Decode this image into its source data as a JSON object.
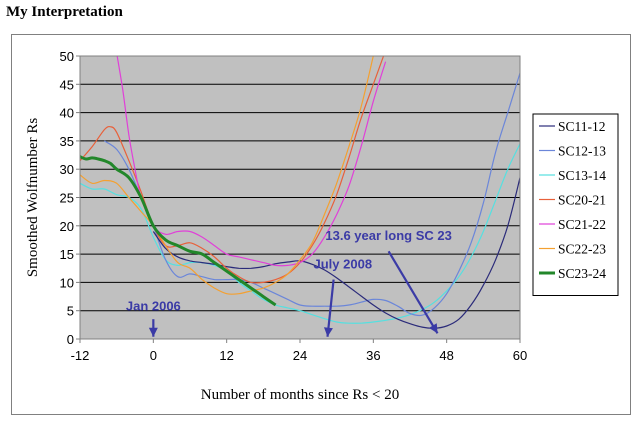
{
  "page": {
    "heading": "My Interpretation"
  },
  "chart_data": {
    "type": "line",
    "title": "",
    "xlabel": "Number of months since Rs < 20",
    "ylabel": "Smoothed Wolfnumber Rs",
    "xlim": [
      -12,
      60
    ],
    "ylim": [
      0,
      50
    ],
    "xticks": [
      "-12",
      "0",
      "12",
      "24",
      "36",
      "48",
      "60"
    ],
    "yticks": [
      "0",
      "5",
      "10",
      "15",
      "20",
      "25",
      "30",
      "35",
      "40",
      "45",
      "50"
    ],
    "grid": "horizontal",
    "plot_background": "#c0c0c0",
    "legend_position": "right",
    "series": [
      {
        "name": "SC11-12",
        "color": "#2b2b7a",
        "width": 1.2,
        "x": [
          0,
          2,
          4,
          6,
          8,
          10,
          12,
          14,
          16,
          18,
          20,
          22,
          24,
          26,
          28,
          30,
          32,
          34,
          36,
          38,
          40,
          42,
          44,
          46,
          48,
          50,
          52,
          54,
          56,
          58,
          60
        ],
        "y": [
          19,
          16,
          14.5,
          13.8,
          13.5,
          13.2,
          12.8,
          12.5,
          12.5,
          12.8,
          13.3,
          13.6,
          13.8,
          13.2,
          12.2,
          10.8,
          9.2,
          7.6,
          6,
          4.6,
          3.5,
          2.7,
          2.1,
          1.9,
          2.3,
          3.5,
          6,
          9.5,
          14,
          20,
          28.5
        ]
      },
      {
        "name": "SC12-13",
        "color": "#6b86d9",
        "width": 1.2,
        "x": [
          -8,
          -6,
          -4,
          -2,
          0,
          2,
          4,
          6,
          8,
          10,
          12,
          14,
          16,
          18,
          20,
          22,
          24,
          26,
          28,
          30,
          32,
          34,
          36,
          38,
          40,
          42,
          44,
          46,
          48,
          50,
          52,
          54,
          56,
          58,
          60
        ],
        "y": [
          35,
          33.5,
          30,
          25,
          20,
          14,
          11,
          11.5,
          11,
          10.5,
          10.5,
          10.5,
          10,
          9,
          8,
          7,
          6,
          5.8,
          5.8,
          5.8,
          6,
          6.5,
          7,
          6.8,
          5.8,
          4.5,
          4.2,
          5.5,
          8,
          12,
          17,
          24,
          33,
          40,
          47
        ]
      },
      {
        "name": "SC13-14",
        "color": "#55e0e0",
        "width": 1.2,
        "x": [
          -12,
          -10,
          -8,
          -6,
          -4,
          -2,
          0,
          2,
          4,
          6,
          8,
          10,
          12,
          14,
          16,
          18,
          20,
          22,
          24,
          26,
          28,
          30,
          32,
          34,
          36,
          38,
          40,
          42,
          44,
          46,
          48,
          50,
          52,
          54,
          56,
          58,
          60
        ],
        "y": [
          27.5,
          26.5,
          26.5,
          25.5,
          25,
          23,
          18,
          14,
          13,
          13.5,
          13.5,
          13,
          12,
          10,
          8.5,
          7,
          6,
          5.5,
          5,
          4.3,
          3.6,
          3,
          2.8,
          2.8,
          3,
          3.3,
          3.7,
          4.3,
          5.2,
          6.5,
          8.5,
          11,
          14.5,
          19,
          24.5,
          30,
          34.5
        ]
      },
      {
        "name": "SC20-21",
        "color": "#e8603a",
        "width": 1.2,
        "x": [
          -12,
          -10,
          -8,
          -7,
          -6,
          -4,
          -2,
          0,
          2,
          4,
          6,
          8,
          10,
          12,
          14,
          16,
          18,
          20,
          22,
          24,
          26,
          28,
          30,
          32,
          34,
          36,
          38
        ],
        "y": [
          31.5,
          34,
          37,
          37.5,
          36.5,
          31.5,
          26,
          20,
          16.5,
          16.5,
          17,
          16,
          14.5,
          12.5,
          11,
          10,
          10,
          10.5,
          11.5,
          13.5,
          16.5,
          20.5,
          25.5,
          32,
          39,
          45,
          51
        ]
      },
      {
        "name": "SC21-22",
        "color": "#e040d8",
        "width": 1.2,
        "x": [
          -6,
          -5,
          -4,
          -3,
          -2,
          0,
          2,
          4,
          6,
          8,
          10,
          12,
          14,
          16,
          18,
          20,
          22,
          24,
          26,
          28,
          30,
          32,
          34,
          36,
          38
        ],
        "y": [
          50.5,
          44,
          36,
          30,
          25,
          20,
          18.5,
          19,
          19,
          18,
          16.5,
          15,
          14.5,
          14,
          13.5,
          13,
          13,
          13.5,
          15,
          18,
          22,
          27,
          34,
          42,
          49
        ]
      },
      {
        "name": "SC22-23",
        "color": "#f4a030",
        "width": 1.2,
        "x": [
          -12,
          -10,
          -8,
          -6,
          -4,
          -2,
          0,
          2,
          4,
          6,
          8,
          10,
          12,
          14,
          16,
          18,
          20,
          22,
          24,
          26,
          28,
          30,
          32,
          34,
          36
        ],
        "y": [
          29,
          27.5,
          28,
          27.5,
          25,
          22.5,
          20,
          16.5,
          13.5,
          12.5,
          10.5,
          9,
          8,
          8,
          8.5,
          9,
          10,
          11.5,
          14,
          17,
          22,
          27.5,
          34,
          41,
          50
        ]
      },
      {
        "name": "SC23-24",
        "color": "#22872a",
        "width": 3,
        "x": [
          -12,
          -11,
          -10,
          -9,
          -8,
          -7,
          -6,
          -4,
          -2,
          0,
          2,
          4,
          6,
          8,
          10,
          12,
          14,
          16,
          18,
          20
        ],
        "y": [
          32.2,
          31.8,
          32,
          31.8,
          31.5,
          31,
          30,
          28.5,
          25,
          20,
          17.5,
          16.5,
          15.5,
          15,
          13.5,
          12,
          10.5,
          9,
          7.5,
          6
        ]
      }
    ],
    "annotations": [
      {
        "text": "13.6 year long SC 23",
        "label_x": 38.5,
        "label_y": 17.5,
        "arrow_from": [
          38.5,
          15.5
        ],
        "arrow_to": [
          46.5,
          1
        ]
      },
      {
        "text": "July 2008",
        "label_x": 31,
        "label_y": 12.5,
        "arrow_from": [
          29.5,
          10.5
        ],
        "arrow_to": [
          28.5,
          0.4
        ]
      },
      {
        "text": "Jan 2006",
        "label_x": 0,
        "label_y": 5,
        "arrow_from": [
          0,
          3.5
        ],
        "arrow_to": [
          0,
          0.4
        ]
      }
    ]
  }
}
